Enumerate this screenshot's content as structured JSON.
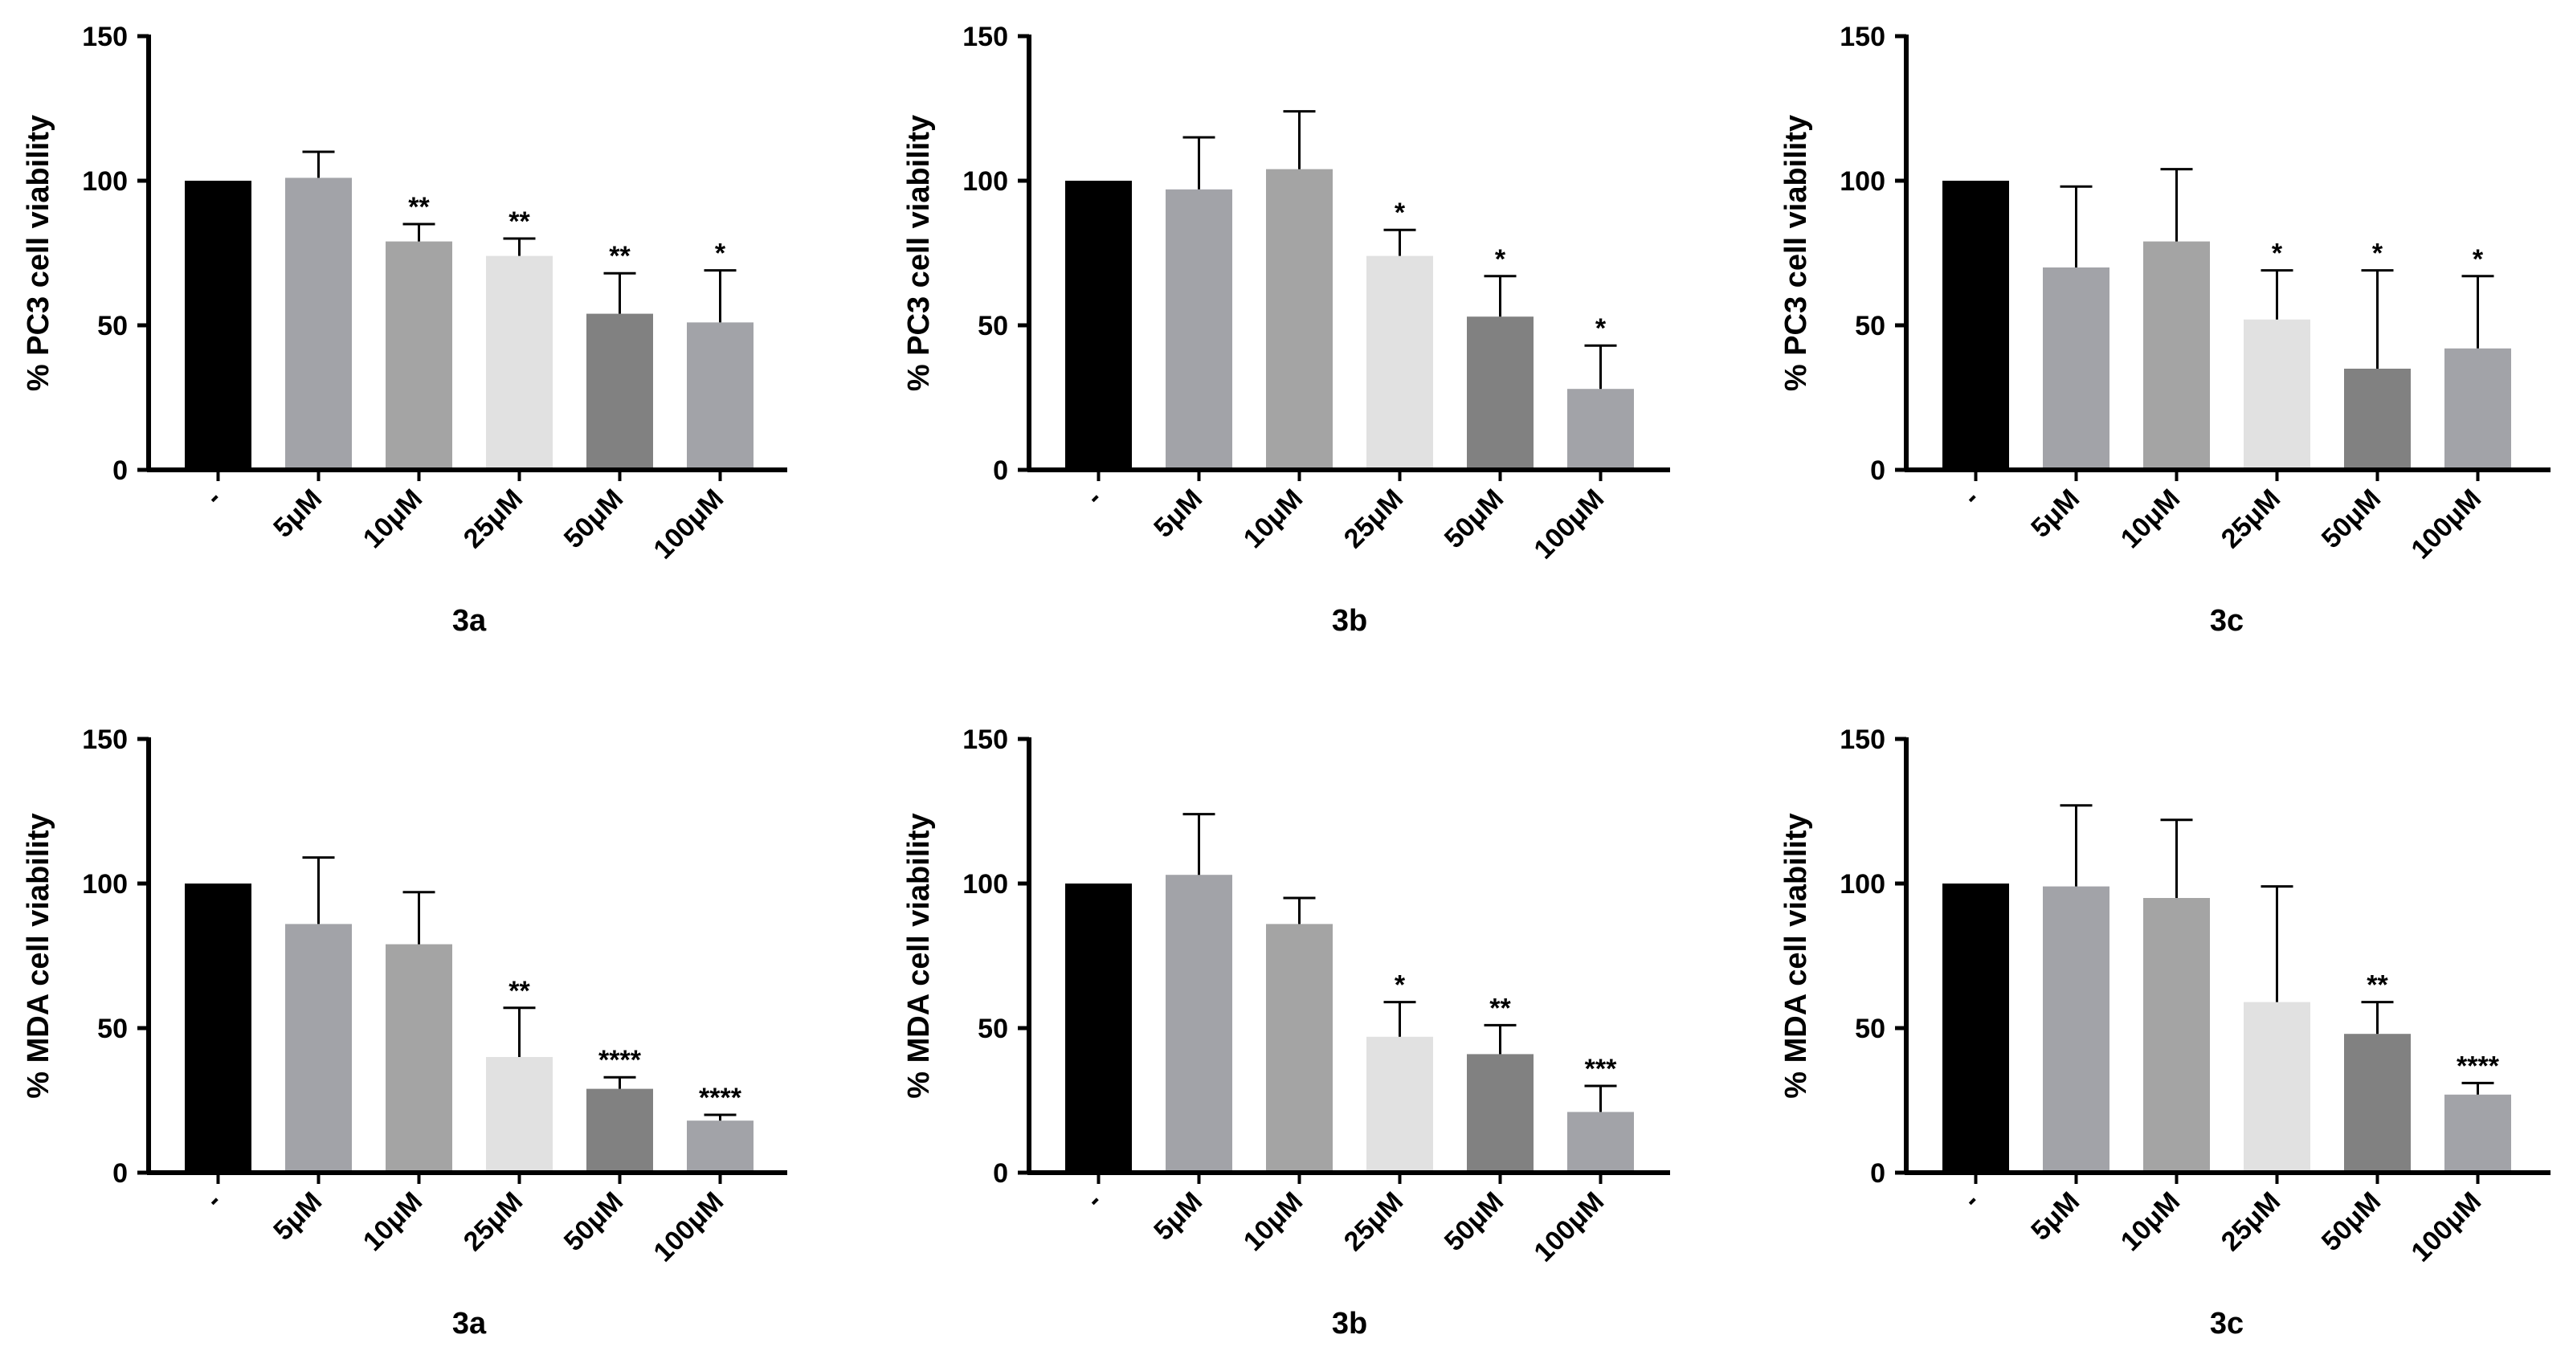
{
  "chart_data": [
    {
      "type": "bar",
      "panel": "3a",
      "xlabel": "3a",
      "ylabel": "% PC3 cell viability",
      "ylim": [
        0,
        150
      ],
      "yticks": [
        0,
        50,
        100,
        150
      ],
      "categories": [
        "-",
        "5μM",
        "10μM",
        "25μM",
        "50μM",
        "100μM"
      ],
      "values": [
        100,
        101,
        79,
        74,
        54,
        51
      ],
      "errors": [
        0,
        9,
        6,
        6,
        14,
        18
      ],
      "significance": [
        "",
        "",
        "**",
        "**",
        "**",
        "*"
      ],
      "colors": [
        "#000000",
        "#a2a3a8",
        "#a4a4a4",
        "#e1e1e1",
        "#818181",
        "#a2a3a8"
      ]
    },
    {
      "type": "bar",
      "panel": "3b",
      "xlabel": "3b",
      "ylabel": "% PC3 cell viability",
      "ylim": [
        0,
        150
      ],
      "yticks": [
        0,
        50,
        100,
        150
      ],
      "categories": [
        "-",
        "5μM",
        "10μM",
        "25μM",
        "50μM",
        "100μM"
      ],
      "values": [
        100,
        97,
        104,
        74,
        53,
        28
      ],
      "errors": [
        0,
        18,
        20,
        9,
        14,
        15
      ],
      "significance": [
        "",
        "",
        "",
        "*",
        "*",
        "*"
      ],
      "colors": [
        "#000000",
        "#a2a3a8",
        "#a4a4a4",
        "#e1e1e1",
        "#818181",
        "#a2a3a8"
      ]
    },
    {
      "type": "bar",
      "panel": "3c",
      "xlabel": "3c",
      "ylabel": "% PC3 cell viability",
      "ylim": [
        0,
        150
      ],
      "yticks": [
        0,
        50,
        100,
        150
      ],
      "categories": [
        "-",
        "5μM",
        "10μM",
        "25μM",
        "50μM",
        "100μM"
      ],
      "values": [
        100,
        70,
        79,
        52,
        35,
        42
      ],
      "errors": [
        0,
        28,
        25,
        17,
        34,
        25
      ],
      "significance": [
        "",
        "",
        "",
        "*",
        "*",
        "*"
      ],
      "colors": [
        "#000000",
        "#a2a3a8",
        "#a4a4a4",
        "#e1e1e1",
        "#818181",
        "#a2a3a8"
      ]
    },
    {
      "type": "bar",
      "panel": "3a",
      "xlabel": "3a",
      "ylabel": "% MDA cell viability",
      "ylim": [
        0,
        150
      ],
      "yticks": [
        0,
        50,
        100,
        150
      ],
      "categories": [
        "-",
        "5μM",
        "10μM",
        "25μM",
        "50μM",
        "100μM"
      ],
      "values": [
        100,
        86,
        79,
        40,
        29,
        18
      ],
      "errors": [
        0,
        23,
        18,
        17,
        4,
        2
      ],
      "significance": [
        "",
        "",
        "",
        "**",
        "****",
        "****"
      ],
      "colors": [
        "#000000",
        "#a2a3a8",
        "#a4a4a4",
        "#e1e1e1",
        "#818181",
        "#a2a3a8"
      ]
    },
    {
      "type": "bar",
      "panel": "3b",
      "xlabel": "3b",
      "ylabel": "% MDA cell viability",
      "ylim": [
        0,
        150
      ],
      "yticks": [
        0,
        50,
        100,
        150
      ],
      "categories": [
        "-",
        "5μM",
        "10μM",
        "25μM",
        "50μM",
        "100μM"
      ],
      "values": [
        100,
        103,
        86,
        47,
        41,
        21
      ],
      "errors": [
        0,
        21,
        9,
        12,
        10,
        9
      ],
      "significance": [
        "",
        "",
        "",
        "*",
        "**",
        "***"
      ],
      "colors": [
        "#000000",
        "#a2a3a8",
        "#a4a4a4",
        "#e1e1e1",
        "#818181",
        "#a2a3a8"
      ]
    },
    {
      "type": "bar",
      "panel": "3c",
      "xlabel": "3c",
      "ylabel": "% MDA cell viability",
      "ylim": [
        0,
        150
      ],
      "yticks": [
        0,
        50,
        100,
        150
      ],
      "categories": [
        "-",
        "5μM",
        "10μM",
        "25μM",
        "50μM",
        "100μM"
      ],
      "values": [
        100,
        99,
        95,
        59,
        48,
        27
      ],
      "errors": [
        0,
        28,
        27,
        40,
        11,
        4
      ],
      "significance": [
        "",
        "",
        "",
        "",
        "**",
        "****"
      ],
      "colors": [
        "#000000",
        "#a2a3a8",
        "#a4a4a4",
        "#e1e1e1",
        "#818181",
        "#a2a3a8"
      ]
    }
  ]
}
